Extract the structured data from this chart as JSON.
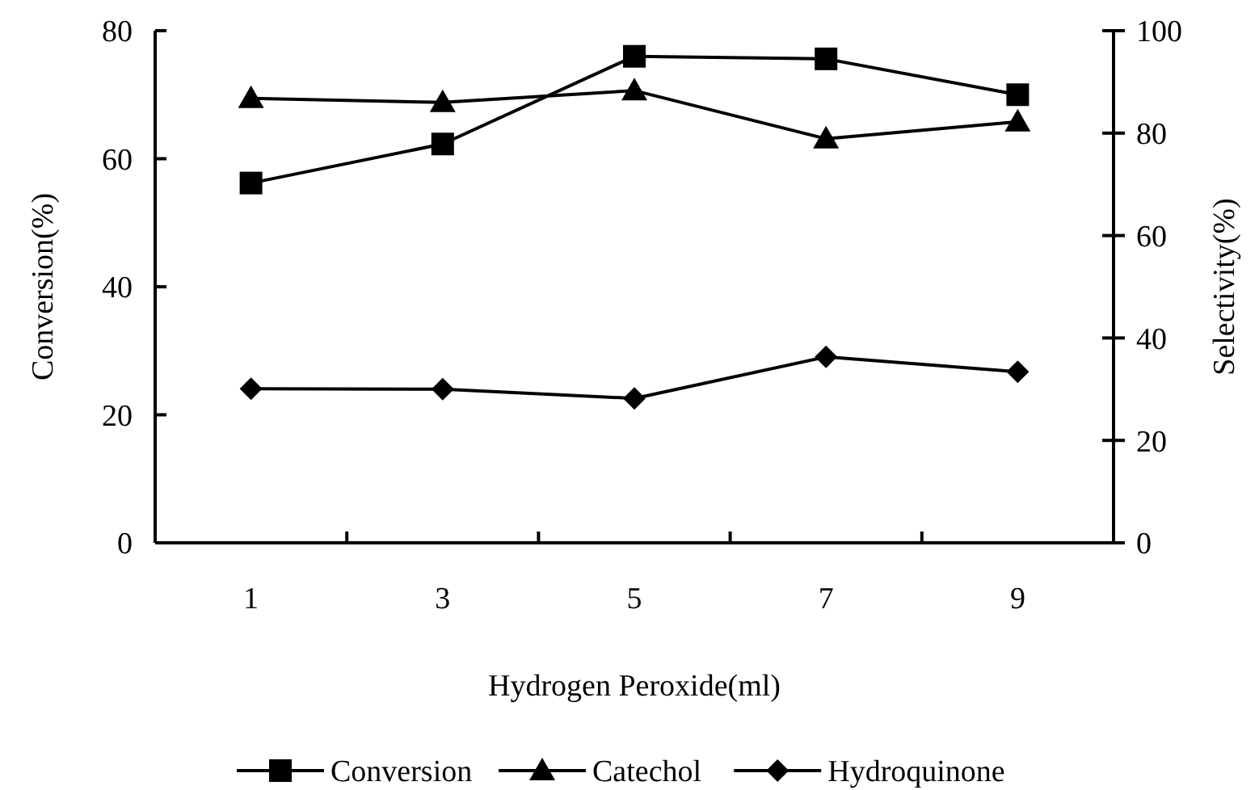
{
  "chart_data": {
    "type": "line",
    "xlabel": "Hydrogen Peroxide(ml)",
    "ylabel": "Conversion(%)",
    "y2label": "Selectivity(%)",
    "categories": [
      "1",
      "3",
      "5",
      "7",
      "9"
    ],
    "series": [
      {
        "name": "Conversion",
        "color": "#000000",
        "marker": "square",
        "values": [
          56.2,
          62.3,
          76,
          75.6,
          70
        ]
      },
      {
        "name": "Catechol",
        "color": "#000000",
        "marker": "triangle",
        "axis": "y2",
        "values": [
          86.8,
          86,
          88.3,
          78.9,
          82.2
        ]
      },
      {
        "name": "Hydroquinone",
        "color": "#000000",
        "marker": "diamond",
        "axis": "y2",
        "values": [
          30.1,
          30,
          28.2,
          36.3,
          33.4
        ]
      }
    ],
    "ylim": [
      0,
      80
    ],
    "yticks": [
      0,
      20,
      40,
      60,
      80
    ],
    "y2lim": [
      0,
      100
    ],
    "y2ticks": [
      0,
      20,
      40,
      60,
      80,
      100
    ],
    "grid": false,
    "legend": "bottom",
    "line_style": "solid"
  }
}
